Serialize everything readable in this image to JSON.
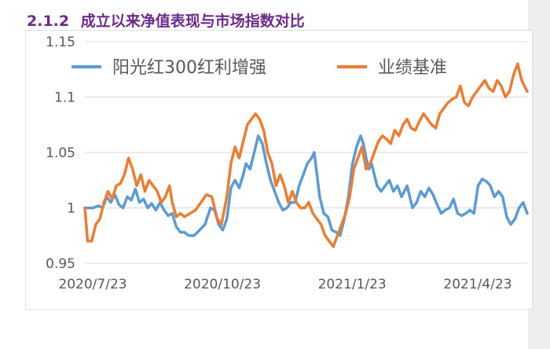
{
  "page": {
    "section_number": "2.1.2",
    "section_title": "成立以来净值表现与市场指数对比"
  },
  "chart_data": {
    "type": "line",
    "title": "",
    "xlabel": "",
    "ylabel": "",
    "ylim": [
      0.95,
      1.15
    ],
    "yticks": [
      "0.95",
      "1",
      "1.05",
      "1.1",
      "1.15"
    ],
    "ytick_values": [
      0.95,
      1.0,
      1.05,
      1.1,
      1.15
    ],
    "xticks": [
      "2020/7/23",
      "2020/10/23",
      "2021/1/23",
      "2021/4/23"
    ],
    "xtick_positions": [
      0,
      64,
      128,
      192
    ],
    "x_count": 236,
    "grid": "horizontal",
    "legend": "top",
    "colors": {
      "fund": "#5b9bd5",
      "benchmark": "#ed7d31",
      "grid": "#d9d9d9"
    },
    "series": [
      {
        "name": "阳光红300红利增强",
        "color": "#5b9bd5",
        "points": [
          [
            0,
            1.0
          ],
          [
            6,
            1.0
          ],
          [
            10,
            1.002
          ],
          [
            13,
            1.0
          ],
          [
            16,
            1.01
          ],
          [
            19,
            1.005
          ],
          [
            22,
            1.012
          ],
          [
            25,
            1.003
          ],
          [
            28,
            1.0
          ],
          [
            31,
            1.01
          ],
          [
            34,
            1.007
          ],
          [
            37,
            1.017
          ],
          [
            40,
            1.005
          ],
          [
            43,
            1.008
          ],
          [
            46,
            1.0
          ],
          [
            49,
            1.004
          ],
          [
            52,
            0.998
          ],
          [
            55,
            1.005
          ],
          [
            58,
            0.998
          ],
          [
            61,
            0.993
          ],
          [
            64,
            0.995
          ],
          [
            67,
            0.983
          ],
          [
            70,
            0.978
          ],
          [
            73,
            0.978
          ],
          [
            76,
            0.975
          ],
          [
            80,
            0.975
          ],
          [
            84,
            0.98
          ],
          [
            88,
            0.985
          ],
          [
            92,
            1.0
          ],
          [
            95,
            0.998
          ],
          [
            98,
            0.985
          ],
          [
            101,
            0.98
          ],
          [
            104,
            0.99
          ],
          [
            107,
            1.018
          ],
          [
            110,
            1.025
          ],
          [
            113,
            1.018
          ],
          [
            116,
            1.03
          ],
          [
            118,
            1.04
          ],
          [
            121,
            1.035
          ],
          [
            124,
            1.05
          ],
          [
            127,
            1.065
          ],
          [
            130,
            1.058
          ],
          [
            133,
            1.04
          ],
          [
            136,
            1.025
          ],
          [
            139,
            1.015
          ],
          [
            142,
            1.005
          ],
          [
            145,
            0.998
          ],
          [
            148,
            1.0
          ],
          [
            151,
            1.005
          ],
          [
            154,
            1.005
          ],
          [
            157,
            1.02
          ],
          [
            160,
            1.03
          ],
          [
            163,
            1.04
          ],
          [
            166,
            1.045
          ],
          [
            168,
            1.05
          ],
          [
            170,
            1.03
          ],
          [
            172,
            1.01
          ],
          [
            175,
            0.995
          ],
          [
            178,
            0.992
          ],
          [
            181,
            0.98
          ],
          [
            184,
            0.978
          ],
          [
            187,
            0.975
          ],
          [
            190,
            0.99
          ],
          [
            193,
            1.01
          ],
          [
            196,
            1.04
          ],
          [
            199,
            1.055
          ],
          [
            202,
            1.065
          ],
          [
            204,
            1.058
          ],
          [
            206,
            1.045
          ],
          [
            208,
            1.035
          ],
          [
            210,
            1.04
          ],
          [
            212,
            1.03
          ],
          [
            214,
            1.02
          ],
          [
            217,
            1.015
          ],
          [
            220,
            1.02
          ],
          [
            223,
            1.025
          ],
          [
            226,
            1.015
          ],
          [
            229,
            1.02
          ],
          [
            232,
            1.01
          ],
          [
            236,
            1.02
          ],
          [
            240,
            1.0
          ],
          [
            243,
            1.005
          ],
          [
            246,
            1.015
          ],
          [
            249,
            1.01
          ],
          [
            252,
            1.018
          ],
          [
            255,
            1.012
          ],
          [
            258,
            1.003
          ],
          [
            261,
            0.995
          ],
          [
            264,
            0.998
          ],
          [
            267,
            1.0
          ],
          [
            270,
            1.008
          ],
          [
            273,
            0.995
          ],
          [
            276,
            0.993
          ],
          [
            279,
            0.995
          ],
          [
            282,
            0.998
          ],
          [
            285,
            0.995
          ],
          [
            288,
            1.02
          ],
          [
            291,
            1.026
          ],
          [
            294,
            1.024
          ],
          [
            297,
            1.02
          ],
          [
            300,
            1.01
          ],
          [
            303,
            1.015
          ],
          [
            306,
            1.01
          ],
          [
            309,
            0.992
          ],
          [
            312,
            0.985
          ],
          [
            315,
            0.99
          ],
          [
            318,
            1.0
          ],
          [
            321,
            1.005
          ],
          [
            324,
            0.995
          ]
        ]
      },
      {
        "name": "业绩基准",
        "color": "#ed7d31",
        "points": [
          [
            0,
            1.0
          ],
          [
            2,
            0.97
          ],
          [
            5,
            0.97
          ],
          [
            8,
            0.985
          ],
          [
            11,
            0.99
          ],
          [
            14,
            1.005
          ],
          [
            17,
            1.015
          ],
          [
            20,
            1.008
          ],
          [
            23,
            1.02
          ],
          [
            26,
            1.022
          ],
          [
            29,
            1.03
          ],
          [
            32,
            1.045
          ],
          [
            35,
            1.035
          ],
          [
            38,
            1.02
          ],
          [
            41,
            1.03
          ],
          [
            44,
            1.015
          ],
          [
            47,
            1.025
          ],
          [
            50,
            1.02
          ],
          [
            53,
            1.015
          ],
          [
            56,
            1.005
          ],
          [
            59,
            1.01
          ],
          [
            62,
            1.02
          ],
          [
            64,
            1.005
          ],
          [
            67,
            0.992
          ],
          [
            70,
            0.995
          ],
          [
            73,
            0.992
          ],
          [
            77,
            0.995
          ],
          [
            81,
            0.998
          ],
          [
            85,
            1.005
          ],
          [
            89,
            1.012
          ],
          [
            93,
            1.01
          ],
          [
            97,
            0.99
          ],
          [
            100,
            0.985
          ],
          [
            104,
            1.01
          ],
          [
            107,
            1.04
          ],
          [
            110,
            1.055
          ],
          [
            113,
            1.045
          ],
          [
            116,
            1.06
          ],
          [
            119,
            1.075
          ],
          [
            122,
            1.08
          ],
          [
            125,
            1.085
          ],
          [
            128,
            1.08
          ],
          [
            131,
            1.07
          ],
          [
            134,
            1.05
          ],
          [
            137,
            1.04
          ],
          [
            140,
            1.02
          ],
          [
            143,
            1.03
          ],
          [
            146,
            1.02
          ],
          [
            149,
            1.005
          ],
          [
            152,
            1.015
          ],
          [
            155,
            1.005
          ],
          [
            158,
            1.0
          ],
          [
            161,
            1.0
          ],
          [
            164,
            1.005
          ],
          [
            167,
            0.995
          ],
          [
            170,
            0.99
          ],
          [
            173,
            0.985
          ],
          [
            176,
            0.975
          ],
          [
            179,
            0.97
          ],
          [
            182,
            0.965
          ],
          [
            185,
            0.975
          ],
          [
            188,
            0.985
          ],
          [
            191,
            0.995
          ],
          [
            194,
            1.01
          ],
          [
            197,
            1.035
          ],
          [
            200,
            1.045
          ],
          [
            203,
            1.055
          ],
          [
            206,
            1.035
          ],
          [
            209,
            1.04
          ],
          [
            212,
            1.05
          ],
          [
            215,
            1.06
          ],
          [
            218,
            1.065
          ],
          [
            221,
            1.062
          ],
          [
            224,
            1.058
          ],
          [
            227,
            1.07
          ],
          [
            230,
            1.065
          ],
          [
            233,
            1.075
          ],
          [
            236,
            1.08
          ],
          [
            239,
            1.072
          ],
          [
            242,
            1.07
          ],
          [
            245,
            1.078
          ],
          [
            248,
            1.085
          ],
          [
            251,
            1.08
          ],
          [
            254,
            1.075
          ],
          [
            257,
            1.072
          ],
          [
            260,
            1.085
          ],
          [
            263,
            1.09
          ],
          [
            266,
            1.095
          ],
          [
            269,
            1.098
          ],
          [
            272,
            1.1
          ],
          [
            275,
            1.11
          ],
          [
            278,
            1.095
          ],
          [
            281,
            1.092
          ],
          [
            284,
            1.1
          ],
          [
            287,
            1.105
          ],
          [
            290,
            1.11
          ],
          [
            293,
            1.115
          ],
          [
            296,
            1.108
          ],
          [
            299,
            1.105
          ],
          [
            302,
            1.115
          ],
          [
            305,
            1.11
          ],
          [
            308,
            1.1
          ],
          [
            311,
            1.105
          ],
          [
            314,
            1.12
          ],
          [
            317,
            1.13
          ],
          [
            320,
            1.115
          ],
          [
            324,
            1.105
          ]
        ]
      }
    ]
  }
}
